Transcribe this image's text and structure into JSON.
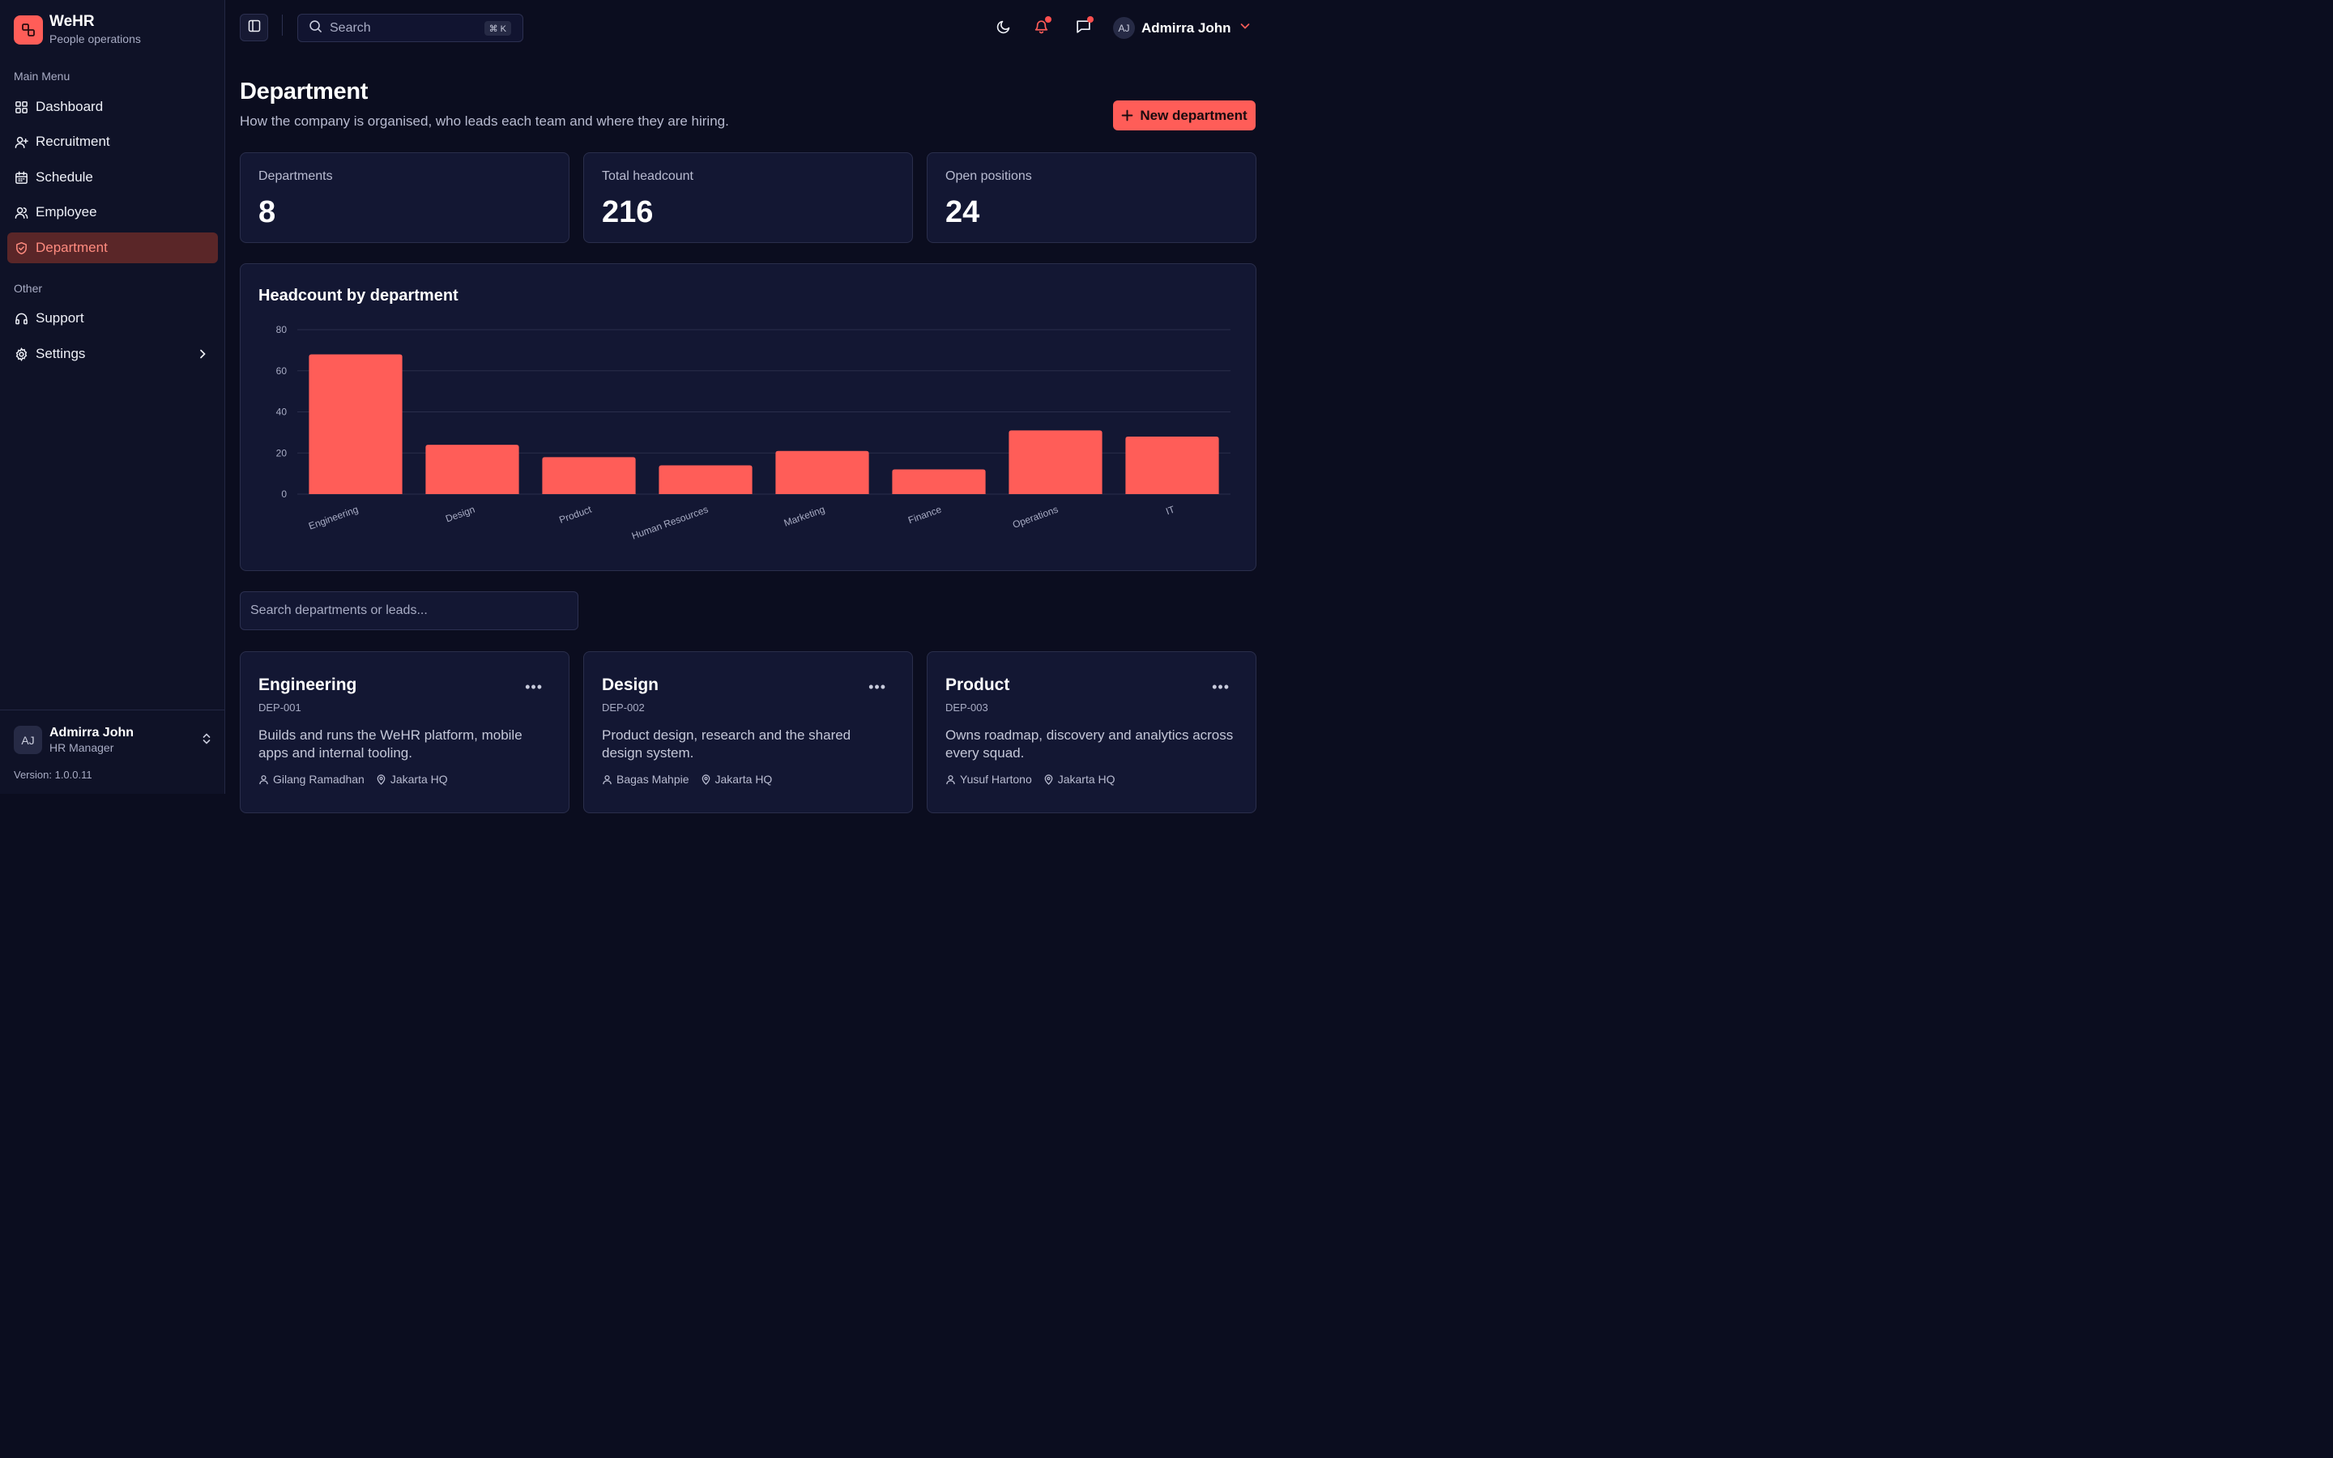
{
  "brand": {
    "name": "WeHR",
    "subtitle": "People operations"
  },
  "sidebar": {
    "main_section": "Main Menu",
    "items": [
      {
        "label": "Dashboard",
        "icon": "grid-icon"
      },
      {
        "label": "Recruitment",
        "icon": "user-plus-icon"
      },
      {
        "label": "Schedule",
        "icon": "calendar-icon"
      },
      {
        "label": "Employee",
        "icon": "users-icon"
      },
      {
        "label": "Department",
        "icon": "shield-check-icon",
        "active": true
      }
    ],
    "other_section": "Other",
    "other_items": [
      {
        "label": "Support",
        "icon": "headphones-icon"
      },
      {
        "label": "Settings",
        "icon": "gear-icon"
      }
    ],
    "user": {
      "initials": "AJ",
      "name": "Admirra John",
      "role": "HR Manager"
    },
    "version": "Version: 1.0.0.11"
  },
  "topbar": {
    "search_placeholder": "Search",
    "shortcut": "⌘ K",
    "user": {
      "initials": "AJ",
      "name": "Admirra John"
    }
  },
  "page": {
    "title": "Department",
    "subtitle": "How the company is organised, who leads each team and where they are hiring.",
    "new_button": "New department"
  },
  "stats": [
    {
      "label": "Departments",
      "value": "8"
    },
    {
      "label": "Total headcount",
      "value": "216"
    },
    {
      "label": "Open positions",
      "value": "24"
    }
  ],
  "chart_data": {
    "type": "bar",
    "title": "Headcount by department",
    "categories": [
      "Engineering",
      "Design",
      "Product",
      "Human Resources",
      "Marketing",
      "Finance",
      "Operations",
      "IT"
    ],
    "values": [
      68,
      24,
      18,
      14,
      21,
      12,
      31,
      28
    ],
    "ylim": [
      0,
      80
    ],
    "yticks": [
      0,
      20,
      40,
      60,
      80
    ],
    "grid": true,
    "bar_color": "#ff5d58"
  },
  "filter": {
    "placeholder": "Search departments or leads..."
  },
  "departments": [
    {
      "name": "Engineering",
      "code": "DEP-001",
      "description": "Builds and runs the WeHR platform, mobile apps and internal tooling.",
      "lead": "Gilang Ramadhan",
      "location": "Jakarta HQ"
    },
    {
      "name": "Design",
      "code": "DEP-002",
      "description": "Product design, research and the shared design system.",
      "lead": "Bagas Mahpie",
      "location": "Jakarta HQ"
    },
    {
      "name": "Product",
      "code": "DEP-003",
      "description": "Owns roadmap, discovery and analytics across every squad.",
      "lead": "Yusuf Hartono",
      "location": "Jakarta HQ"
    }
  ],
  "colors": {
    "accent": "#ff5d58",
    "background": "#0b0d1f",
    "surface": "#131733",
    "active_bg": "#5a2628"
  }
}
